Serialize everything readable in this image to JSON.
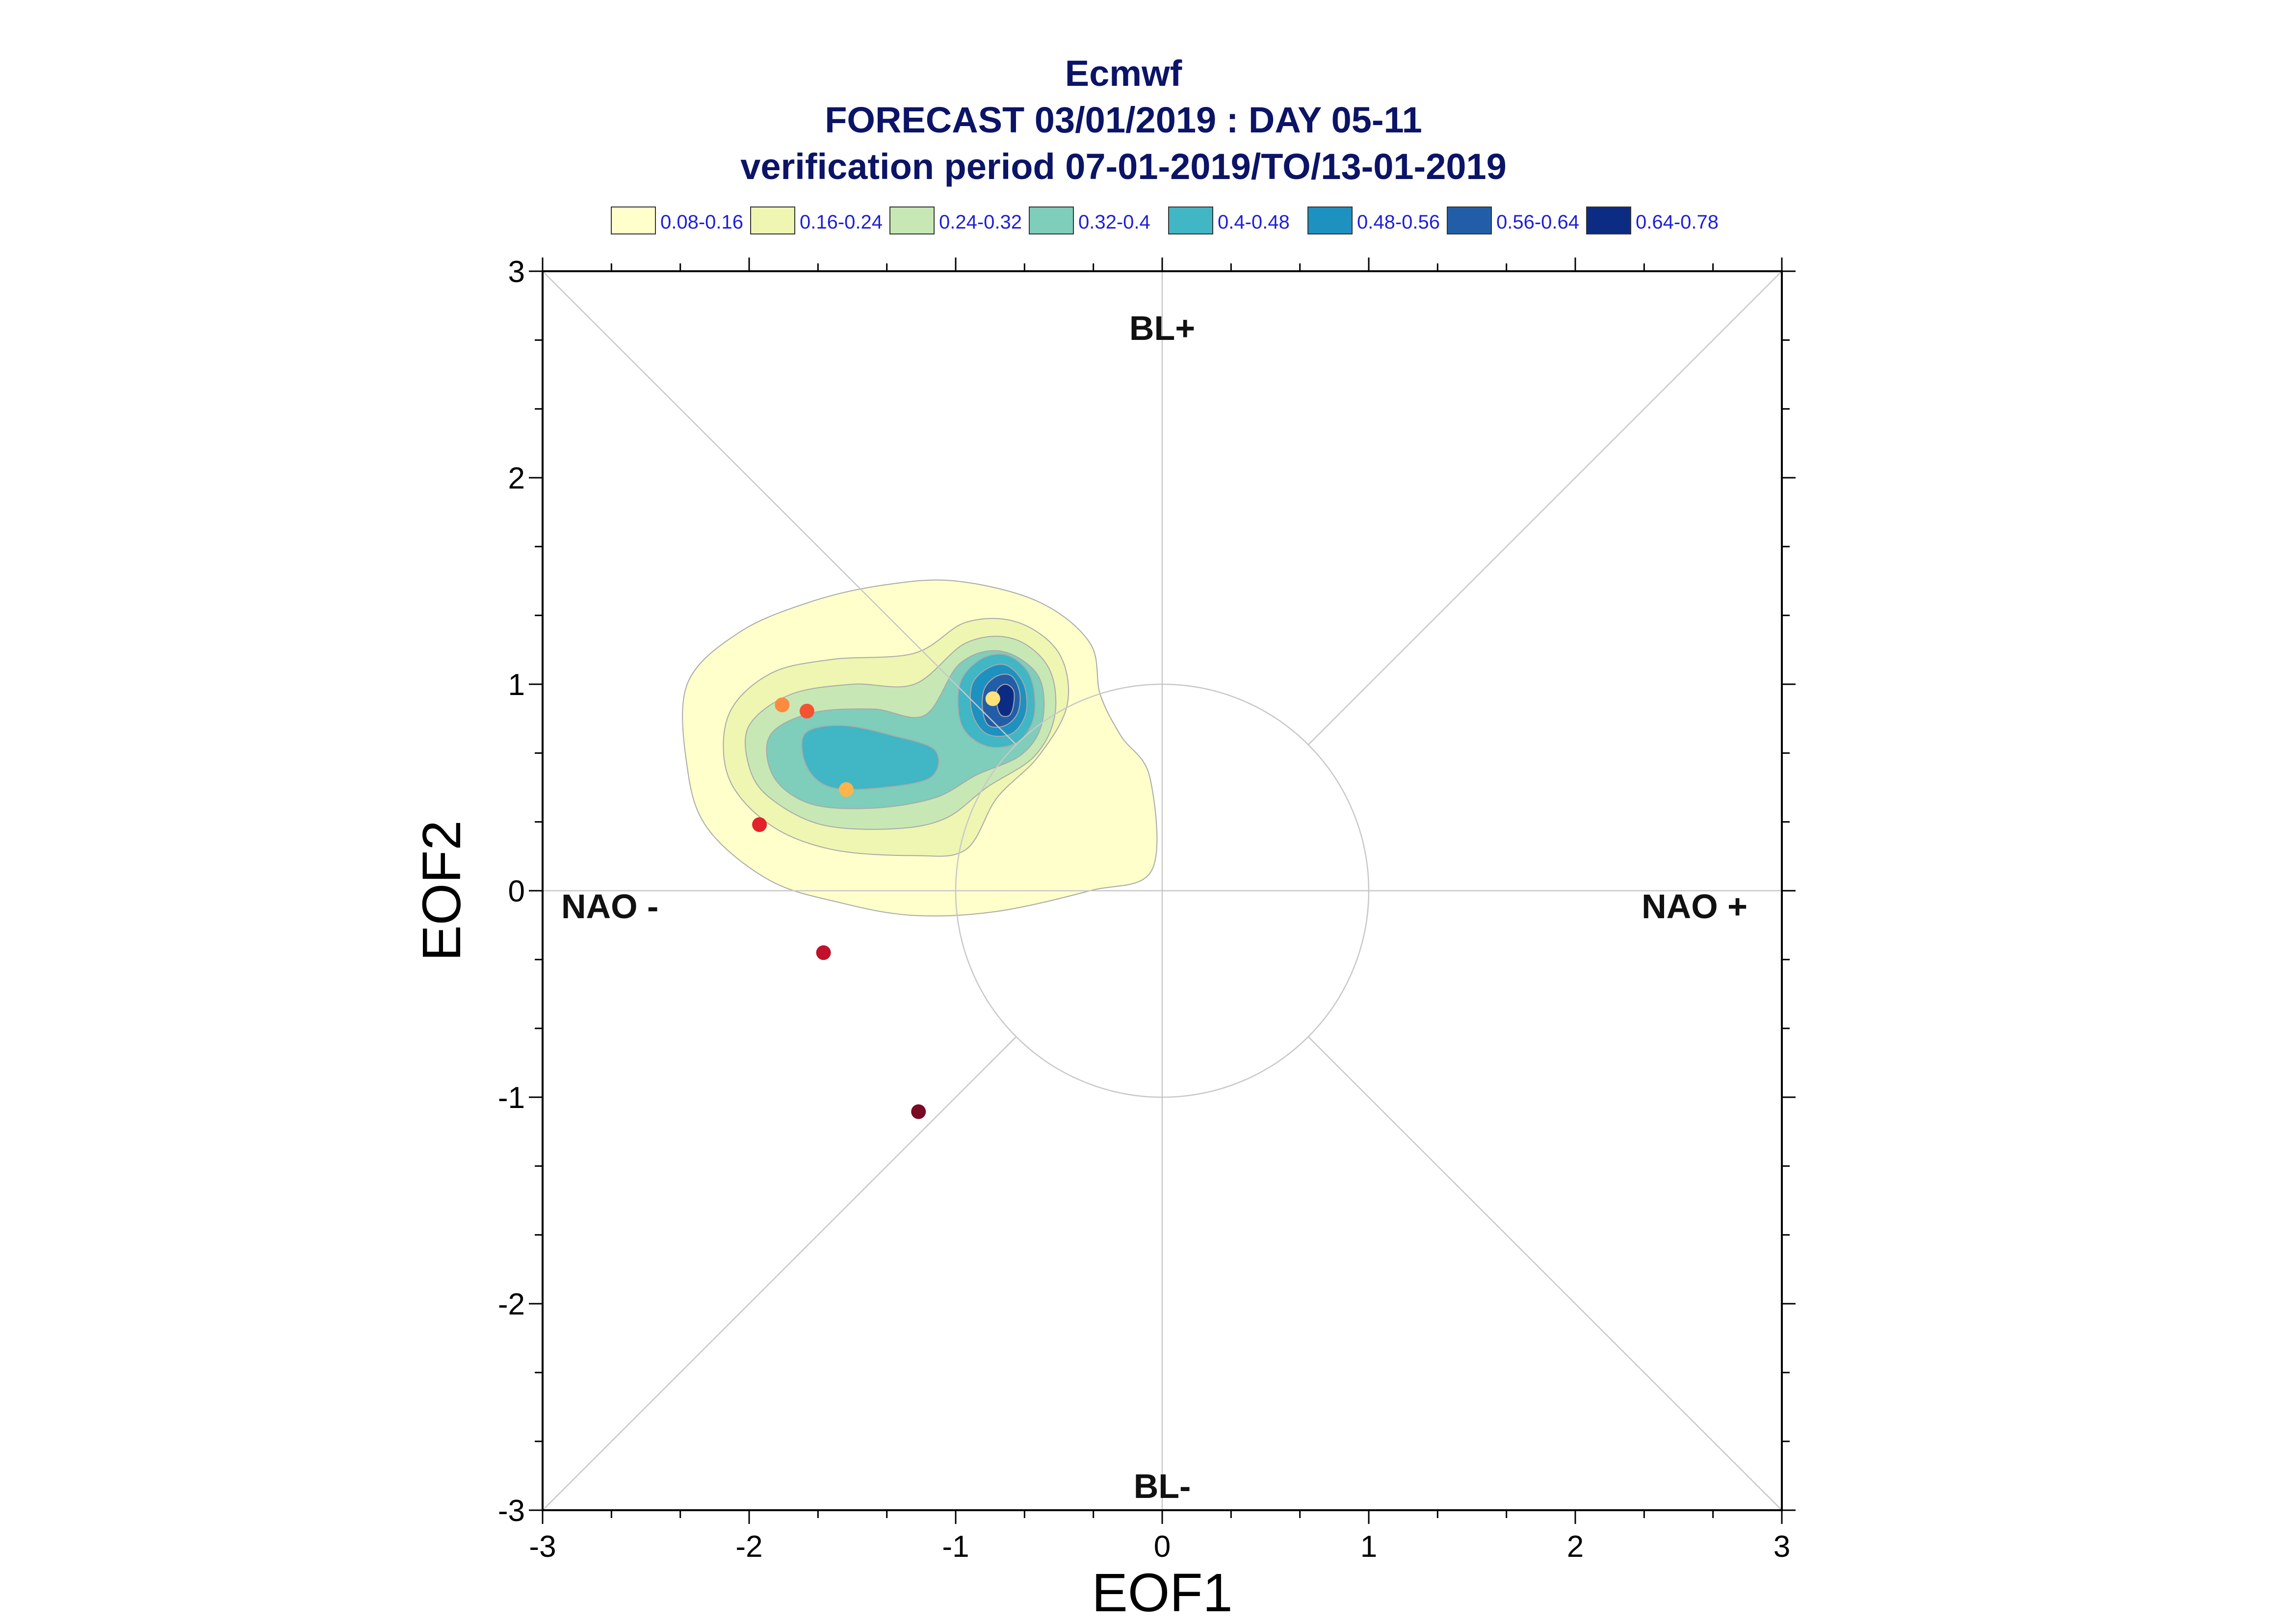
{
  "chart_data": {
    "type": "scatter",
    "title": [
      "Ecmwf",
      "FORECAST 03/01/2019 : DAY 05-11",
      "verification period 07-01-2019/TO/13-01-2019"
    ],
    "xlabel": "EOF1",
    "ylabel": "EOF2",
    "xlim": [
      -3,
      3
    ],
    "ylim": [
      -3,
      3
    ],
    "xticks": [
      -3,
      -2,
      -1,
      0,
      1,
      2,
      3
    ],
    "yticks": [
      -3,
      -2,
      -1,
      0,
      1,
      2,
      3
    ],
    "xtick_labels": [
      "-3",
      "-2",
      "-1",
      "0",
      "1",
      "2",
      "3"
    ],
    "ytick_labels": [
      "-3",
      "-2",
      "-1",
      "0",
      "1",
      "2",
      "3"
    ],
    "grid": false,
    "reference_circle_radius": 1,
    "regime_labels": [
      {
        "text": "BL+",
        "anchor": "top"
      },
      {
        "text": "BL-",
        "anchor": "bottom"
      },
      {
        "text": "NAO -",
        "anchor": "left"
      },
      {
        "text": "NAO +",
        "anchor": "right"
      }
    ],
    "legend": {
      "placement": "top",
      "entries": [
        {
          "label": "0.08-0.16",
          "color": "#ffffcc"
        },
        {
          "label": "0.16-0.24",
          "color": "#eef6b2"
        },
        {
          "label": "0.24-0.32",
          "color": "#c7e8b4"
        },
        {
          "label": "0.32-0.4",
          "color": "#7fcdbb"
        },
        {
          "label": "0.4-0.48",
          "color": "#41b6c4"
        },
        {
          "label": "0.48-0.56",
          "color": "#1d91c0"
        },
        {
          "label": "0.56-0.64",
          "color": "#225ea8"
        },
        {
          "label": "0.64-0.78",
          "color": "#0c2c84"
        }
      ]
    },
    "density_contours": [
      {
        "level": "0.08-0.16",
        "color": "#ffffcc",
        "polygon": [
          [
            -2.3,
            1.0
          ],
          [
            -2.05,
            1.25
          ],
          [
            -1.7,
            1.4
          ],
          [
            -1.35,
            1.48
          ],
          [
            -1.0,
            1.5
          ],
          [
            -0.6,
            1.4
          ],
          [
            -0.35,
            1.2
          ],
          [
            -0.3,
            0.95
          ],
          [
            -0.2,
            0.75
          ],
          [
            -0.06,
            0.55
          ],
          [
            -0.05,
            0.1
          ],
          [
            -0.35,
            0.0
          ],
          [
            -0.8,
            -0.1
          ],
          [
            -1.2,
            -0.12
          ],
          [
            -1.55,
            -0.06
          ],
          [
            -1.9,
            0.05
          ],
          [
            -2.2,
            0.3
          ],
          [
            -2.3,
            0.6
          ]
        ]
      },
      {
        "level": "0.16-0.24",
        "color": "#eef6b2",
        "polygon": [
          [
            -2.1,
            0.85
          ],
          [
            -1.9,
            1.05
          ],
          [
            -1.6,
            1.12
          ],
          [
            -1.2,
            1.15
          ],
          [
            -0.95,
            1.3
          ],
          [
            -0.7,
            1.3
          ],
          [
            -0.5,
            1.15
          ],
          [
            -0.46,
            0.9
          ],
          [
            -0.6,
            0.65
          ],
          [
            -0.8,
            0.45
          ],
          [
            -0.95,
            0.2
          ],
          [
            -1.2,
            0.17
          ],
          [
            -1.6,
            0.2
          ],
          [
            -1.9,
            0.32
          ],
          [
            -2.1,
            0.55
          ]
        ]
      },
      {
        "level": "0.24-0.32",
        "color": "#c7e8b4",
        "polygon": [
          [
            -2.0,
            0.8
          ],
          [
            -1.8,
            0.95
          ],
          [
            -1.5,
            1.0
          ],
          [
            -1.2,
            1.0
          ],
          [
            -0.95,
            1.2
          ],
          [
            -0.72,
            1.22
          ],
          [
            -0.55,
            1.08
          ],
          [
            -0.52,
            0.85
          ],
          [
            -0.62,
            0.65
          ],
          [
            -0.85,
            0.5
          ],
          [
            -1.05,
            0.35
          ],
          [
            -1.3,
            0.3
          ],
          [
            -1.65,
            0.32
          ],
          [
            -1.9,
            0.45
          ],
          [
            -2.0,
            0.6
          ]
        ]
      },
      {
        "level": "0.32-0.4",
        "color": "#7fcdbb",
        "polygon": [
          [
            -1.9,
            0.75
          ],
          [
            -1.7,
            0.86
          ],
          [
            -1.4,
            0.88
          ],
          [
            -1.15,
            0.85
          ],
          [
            -0.98,
            1.1
          ],
          [
            -0.78,
            1.16
          ],
          [
            -0.6,
            1.04
          ],
          [
            -0.58,
            0.82
          ],
          [
            -0.68,
            0.66
          ],
          [
            -0.9,
            0.56
          ],
          [
            -1.1,
            0.45
          ],
          [
            -1.4,
            0.4
          ],
          [
            -1.7,
            0.42
          ],
          [
            -1.88,
            0.55
          ]
        ]
      },
      {
        "level": "0.4-0.48",
        "color": "#41b6c4",
        "polygon": [
          [
            -1.73,
            0.76
          ],
          [
            -1.55,
            0.8
          ],
          [
            -1.3,
            0.75
          ],
          [
            -1.1,
            0.68
          ],
          [
            -1.12,
            0.55
          ],
          [
            -1.35,
            0.5
          ],
          [
            -1.6,
            0.5
          ],
          [
            -1.72,
            0.6
          ]
        ]
      },
      {
        "level": "0.4-0.48",
        "color": "#41b6c4",
        "polygon": [
          [
            -0.98,
            1.0
          ],
          [
            -0.88,
            1.12
          ],
          [
            -0.75,
            1.14
          ],
          [
            -0.64,
            1.04
          ],
          [
            -0.62,
            0.85
          ],
          [
            -0.7,
            0.72
          ],
          [
            -0.85,
            0.7
          ],
          [
            -0.97,
            0.8
          ]
        ]
      },
      {
        "level": "0.48-0.56",
        "color": "#1d91c0",
        "polygon": [
          [
            -0.92,
            1.0
          ],
          [
            -0.84,
            1.08
          ],
          [
            -0.75,
            1.09
          ],
          [
            -0.67,
            1.0
          ],
          [
            -0.66,
            0.86
          ],
          [
            -0.73,
            0.76
          ],
          [
            -0.85,
            0.76
          ],
          [
            -0.92,
            0.86
          ]
        ]
      },
      {
        "level": "0.56-0.64",
        "color": "#225ea8",
        "polygon": [
          [
            -0.86,
            0.98
          ],
          [
            -0.8,
            1.04
          ],
          [
            -0.73,
            1.04
          ],
          [
            -0.69,
            0.96
          ],
          [
            -0.7,
            0.86
          ],
          [
            -0.76,
            0.8
          ],
          [
            -0.84,
            0.8
          ],
          [
            -0.87,
            0.88
          ]
        ]
      },
      {
        "level": "0.64-0.78",
        "color": "#0c2c84",
        "polygon": [
          [
            -0.8,
            0.97
          ],
          [
            -0.76,
            1.0
          ],
          [
            -0.72,
            0.97
          ],
          [
            -0.72,
            0.9
          ],
          [
            -0.74,
            0.85
          ],
          [
            -0.78,
            0.85
          ],
          [
            -0.8,
            0.9
          ]
        ]
      }
    ],
    "points": [
      {
        "x": -0.82,
        "y": 0.93,
        "color": "#ffe27a"
      },
      {
        "x": -1.53,
        "y": 0.49,
        "color": "#fdb44c"
      },
      {
        "x": -1.84,
        "y": 0.9,
        "color": "#fc8a3f"
      },
      {
        "x": -1.72,
        "y": 0.87,
        "color": "#f55232"
      },
      {
        "x": -1.95,
        "y": 0.32,
        "color": "#e3222a"
      },
      {
        "x": -1.64,
        "y": -0.3,
        "color": "#c2112b"
      },
      {
        "x": -1.18,
        "y": -1.07,
        "color": "#7a0a24"
      }
    ]
  }
}
